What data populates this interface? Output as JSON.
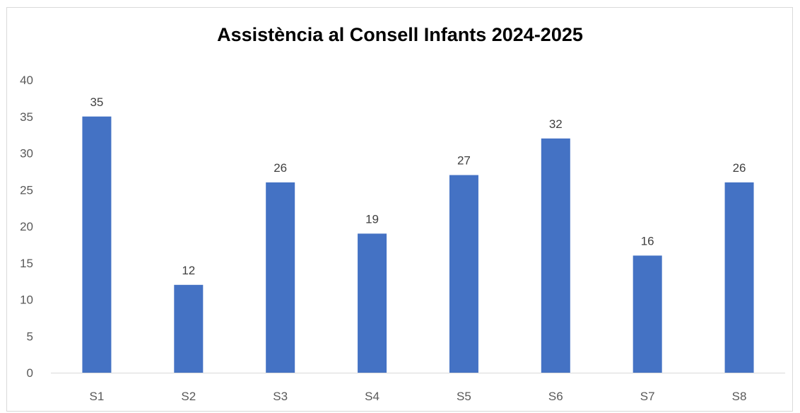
{
  "chart_data": {
    "type": "bar",
    "title": "Assistència al Consell Infants 2024-2025",
    "xlabel": "",
    "ylabel": "",
    "categories": [
      "S1",
      "S2",
      "S3",
      "S4",
      "S5",
      "S6",
      "S7",
      "S8"
    ],
    "values": [
      35,
      12,
      26,
      19,
      27,
      32,
      16,
      26
    ],
    "ylim": [
      0,
      40
    ],
    "yticks": [
      0,
      5,
      10,
      15,
      20,
      25,
      30,
      35,
      40
    ],
    "grid": false,
    "legend": "none",
    "data_labels": true,
    "bar_color": "#4472c4"
  }
}
